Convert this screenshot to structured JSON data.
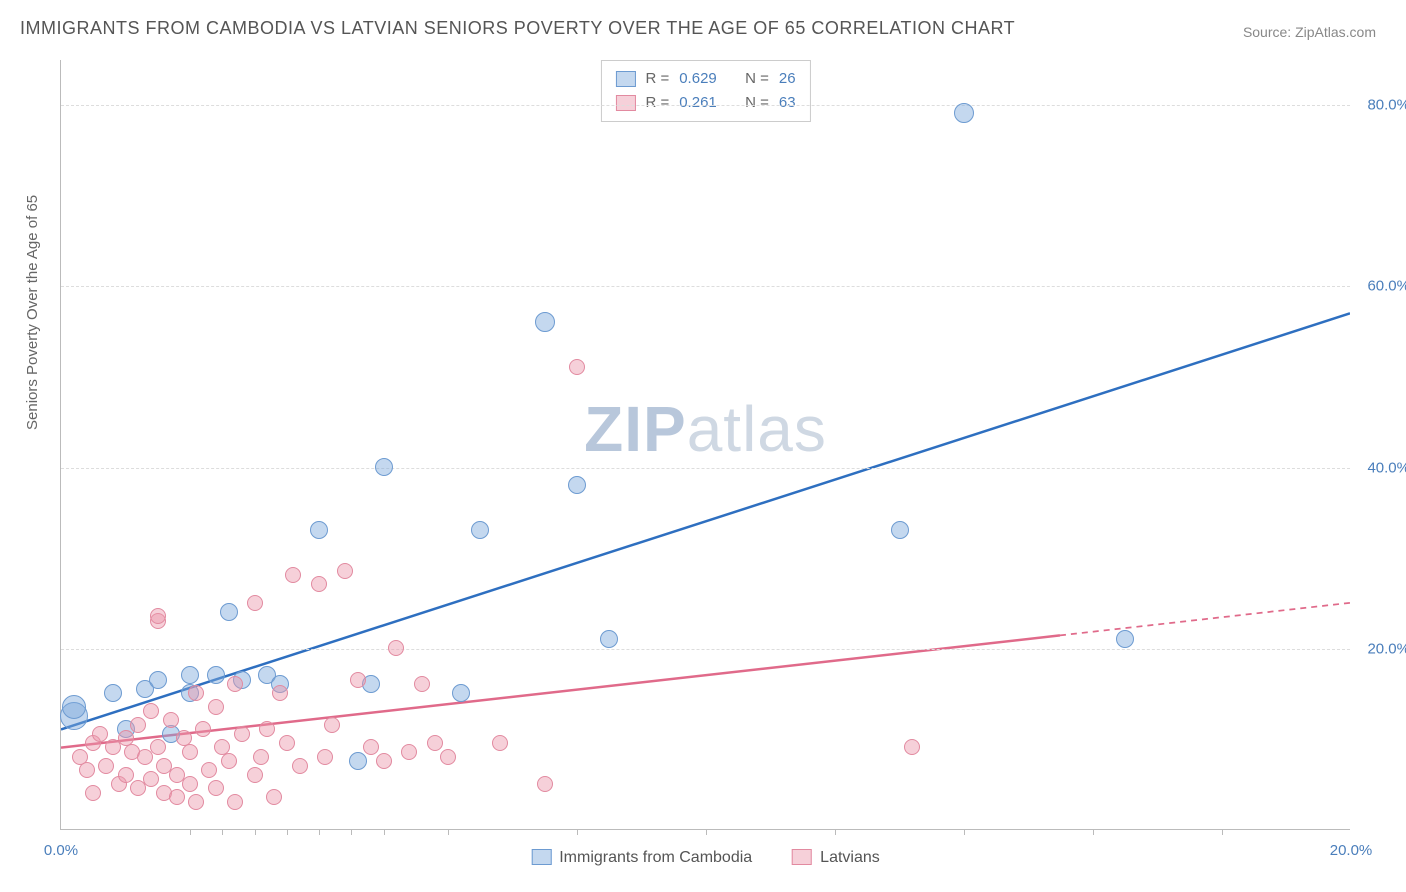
{
  "title": "IMMIGRANTS FROM CAMBODIA VS LATVIAN SENIORS POVERTY OVER THE AGE OF 65 CORRELATION CHART",
  "source": "Source: ZipAtlas.com",
  "y_axis_title": "Seniors Poverty Over the Age of 65",
  "watermark_zip": "ZIP",
  "watermark_atlas": "atlas",
  "watermark_color_zip": "#b8c7db",
  "watermark_color_atlas": "#cfd8e3",
  "chart": {
    "type": "scatter-with-trend",
    "background_color": "#ffffff",
    "grid_color": "#dddddd",
    "axis_color": "#bbbbbb",
    "x_min": 0.0,
    "x_max": 20.0,
    "y_min": 0.0,
    "y_max": 85.0,
    "x_ticks": [
      0.0,
      20.0
    ],
    "x_tick_labels": [
      "0.0%",
      "20.0%"
    ],
    "x_minor_ticks": [
      2.0,
      2.5,
      3.0,
      3.5,
      4.0,
      4.5,
      5.0,
      6.0,
      8.0,
      10.0,
      12.0,
      14.0,
      16.0,
      18.0
    ],
    "y_ticks": [
      20.0,
      40.0,
      60.0,
      80.0
    ],
    "y_tick_labels": [
      "20.0%",
      "40.0%",
      "60.0%",
      "80.0%"
    ],
    "tick_label_color": "#4a7ebb",
    "tick_label_fontsize": 15,
    "axis_title_color": "#666666",
    "axis_title_fontsize": 15
  },
  "series": [
    {
      "name": "Immigrants from Cambodia",
      "legend_label": "Immigrants from Cambodia",
      "marker_fill": "rgba(125,168,220,0.45)",
      "marker_stroke": "#6d9bd1",
      "marker_radius": 9,
      "line_color": "#2e6fc0",
      "line_width": 2.5,
      "R": "0.629",
      "N": "26",
      "trend": {
        "x1": 0.0,
        "y1": 11.0,
        "x2": 20.0,
        "y2": 57.0,
        "solid_until_x": 20.0
      },
      "points": [
        {
          "x": 0.2,
          "y": 12.5,
          "r": 14
        },
        {
          "x": 0.2,
          "y": 13.5,
          "r": 12
        },
        {
          "x": 0.8,
          "y": 15.0,
          "r": 9
        },
        {
          "x": 1.0,
          "y": 11.0,
          "r": 9
        },
        {
          "x": 1.3,
          "y": 15.5,
          "r": 9
        },
        {
          "x": 1.5,
          "y": 16.5,
          "r": 9
        },
        {
          "x": 1.7,
          "y": 10.5,
          "r": 9
        },
        {
          "x": 2.0,
          "y": 17.0,
          "r": 9
        },
        {
          "x": 2.0,
          "y": 15.0,
          "r": 9
        },
        {
          "x": 2.4,
          "y": 17.0,
          "r": 9
        },
        {
          "x": 2.8,
          "y": 16.5,
          "r": 9
        },
        {
          "x": 2.6,
          "y": 24.0,
          "r": 9
        },
        {
          "x": 3.2,
          "y": 17.0,
          "r": 9
        },
        {
          "x": 3.4,
          "y": 16.0,
          "r": 9
        },
        {
          "x": 4.0,
          "y": 33.0,
          "r": 9
        },
        {
          "x": 4.6,
          "y": 7.5,
          "r": 9
        },
        {
          "x": 4.8,
          "y": 16.0,
          "r": 9
        },
        {
          "x": 5.0,
          "y": 40.0,
          "r": 9
        },
        {
          "x": 6.2,
          "y": 15.0,
          "r": 9
        },
        {
          "x": 6.5,
          "y": 33.0,
          "r": 9
        },
        {
          "x": 7.5,
          "y": 56.0,
          "r": 10
        },
        {
          "x": 8.0,
          "y": 38.0,
          "r": 9
        },
        {
          "x": 8.5,
          "y": 21.0,
          "r": 9
        },
        {
          "x": 13.0,
          "y": 33.0,
          "r": 9
        },
        {
          "x": 14.0,
          "y": 79.0,
          "r": 10
        },
        {
          "x": 16.5,
          "y": 21.0,
          "r": 9
        }
      ]
    },
    {
      "name": "Latvians",
      "legend_label": "Latvians",
      "marker_fill": "rgba(236,150,170,0.45)",
      "marker_stroke": "#e28aa0",
      "marker_radius": 9,
      "line_color": "#e06a8a",
      "line_width": 2.5,
      "R": "0.261",
      "N": "63",
      "trend": {
        "x1": 0.0,
        "y1": 9.0,
        "x2": 20.0,
        "y2": 25.0,
        "solid_until_x": 15.5
      },
      "points": [
        {
          "x": 0.3,
          "y": 8.0,
          "r": 8
        },
        {
          "x": 0.4,
          "y": 6.5,
          "r": 8
        },
        {
          "x": 0.5,
          "y": 9.5,
          "r": 8
        },
        {
          "x": 0.5,
          "y": 4.0,
          "r": 8
        },
        {
          "x": 0.6,
          "y": 10.5,
          "r": 8
        },
        {
          "x": 0.7,
          "y": 7.0,
          "r": 8
        },
        {
          "x": 0.8,
          "y": 9.0,
          "r": 8
        },
        {
          "x": 0.9,
          "y": 5.0,
          "r": 8
        },
        {
          "x": 1.0,
          "y": 10.0,
          "r": 8
        },
        {
          "x": 1.0,
          "y": 6.0,
          "r": 8
        },
        {
          "x": 1.1,
          "y": 8.5,
          "r": 8
        },
        {
          "x": 1.2,
          "y": 11.5,
          "r": 8
        },
        {
          "x": 1.2,
          "y": 4.5,
          "r": 8
        },
        {
          "x": 1.3,
          "y": 8.0,
          "r": 8
        },
        {
          "x": 1.4,
          "y": 13.0,
          "r": 8
        },
        {
          "x": 1.4,
          "y": 5.5,
          "r": 8
        },
        {
          "x": 1.5,
          "y": 9.0,
          "r": 8
        },
        {
          "x": 1.5,
          "y": 23.0,
          "r": 8
        },
        {
          "x": 1.5,
          "y": 23.5,
          "r": 8
        },
        {
          "x": 1.6,
          "y": 7.0,
          "r": 8
        },
        {
          "x": 1.6,
          "y": 4.0,
          "r": 8
        },
        {
          "x": 1.7,
          "y": 12.0,
          "r": 8
        },
        {
          "x": 1.8,
          "y": 6.0,
          "r": 8
        },
        {
          "x": 1.8,
          "y": 3.5,
          "r": 8
        },
        {
          "x": 1.9,
          "y": 10.0,
          "r": 8
        },
        {
          "x": 2.0,
          "y": 5.0,
          "r": 8
        },
        {
          "x": 2.0,
          "y": 8.5,
          "r": 8
        },
        {
          "x": 2.1,
          "y": 15.0,
          "r": 8
        },
        {
          "x": 2.1,
          "y": 3.0,
          "r": 8
        },
        {
          "x": 2.2,
          "y": 11.0,
          "r": 8
        },
        {
          "x": 2.3,
          "y": 6.5,
          "r": 8
        },
        {
          "x": 2.4,
          "y": 13.5,
          "r": 8
        },
        {
          "x": 2.4,
          "y": 4.5,
          "r": 8
        },
        {
          "x": 2.5,
          "y": 9.0,
          "r": 8
        },
        {
          "x": 2.6,
          "y": 7.5,
          "r": 8
        },
        {
          "x": 2.7,
          "y": 16.0,
          "r": 8
        },
        {
          "x": 2.7,
          "y": 3.0,
          "r": 8
        },
        {
          "x": 2.8,
          "y": 10.5,
          "r": 8
        },
        {
          "x": 3.0,
          "y": 25.0,
          "r": 8
        },
        {
          "x": 3.0,
          "y": 6.0,
          "r": 8
        },
        {
          "x": 3.1,
          "y": 8.0,
          "r": 8
        },
        {
          "x": 3.2,
          "y": 11.0,
          "r": 8
        },
        {
          "x": 3.3,
          "y": 3.5,
          "r": 8
        },
        {
          "x": 3.4,
          "y": 15.0,
          "r": 8
        },
        {
          "x": 3.5,
          "y": 9.5,
          "r": 8
        },
        {
          "x": 3.6,
          "y": 28.0,
          "r": 8
        },
        {
          "x": 3.7,
          "y": 7.0,
          "r": 8
        },
        {
          "x": 4.0,
          "y": 27.0,
          "r": 8
        },
        {
          "x": 4.1,
          "y": 8.0,
          "r": 8
        },
        {
          "x": 4.2,
          "y": 11.5,
          "r": 8
        },
        {
          "x": 4.4,
          "y": 28.5,
          "r": 8
        },
        {
          "x": 4.6,
          "y": 16.5,
          "r": 8
        },
        {
          "x": 4.8,
          "y": 9.0,
          "r": 8
        },
        {
          "x": 5.0,
          "y": 7.5,
          "r": 8
        },
        {
          "x": 5.2,
          "y": 20.0,
          "r": 8
        },
        {
          "x": 5.4,
          "y": 8.5,
          "r": 8
        },
        {
          "x": 5.6,
          "y": 16.0,
          "r": 8
        },
        {
          "x": 5.8,
          "y": 9.5,
          "r": 8
        },
        {
          "x": 6.0,
          "y": 8.0,
          "r": 8
        },
        {
          "x": 6.8,
          "y": 9.5,
          "r": 8
        },
        {
          "x": 7.5,
          "y": 5.0,
          "r": 8
        },
        {
          "x": 8.0,
          "y": 51.0,
          "r": 8
        },
        {
          "x": 13.2,
          "y": 9.0,
          "r": 8
        }
      ]
    }
  ],
  "legend_top": {
    "r_label": "R =",
    "n_label": "N =",
    "value_color": "#4a7ebb",
    "label_color": "#666666"
  },
  "legend_bottom_labels": [
    "Immigrants from Cambodia",
    "Latvians"
  ]
}
